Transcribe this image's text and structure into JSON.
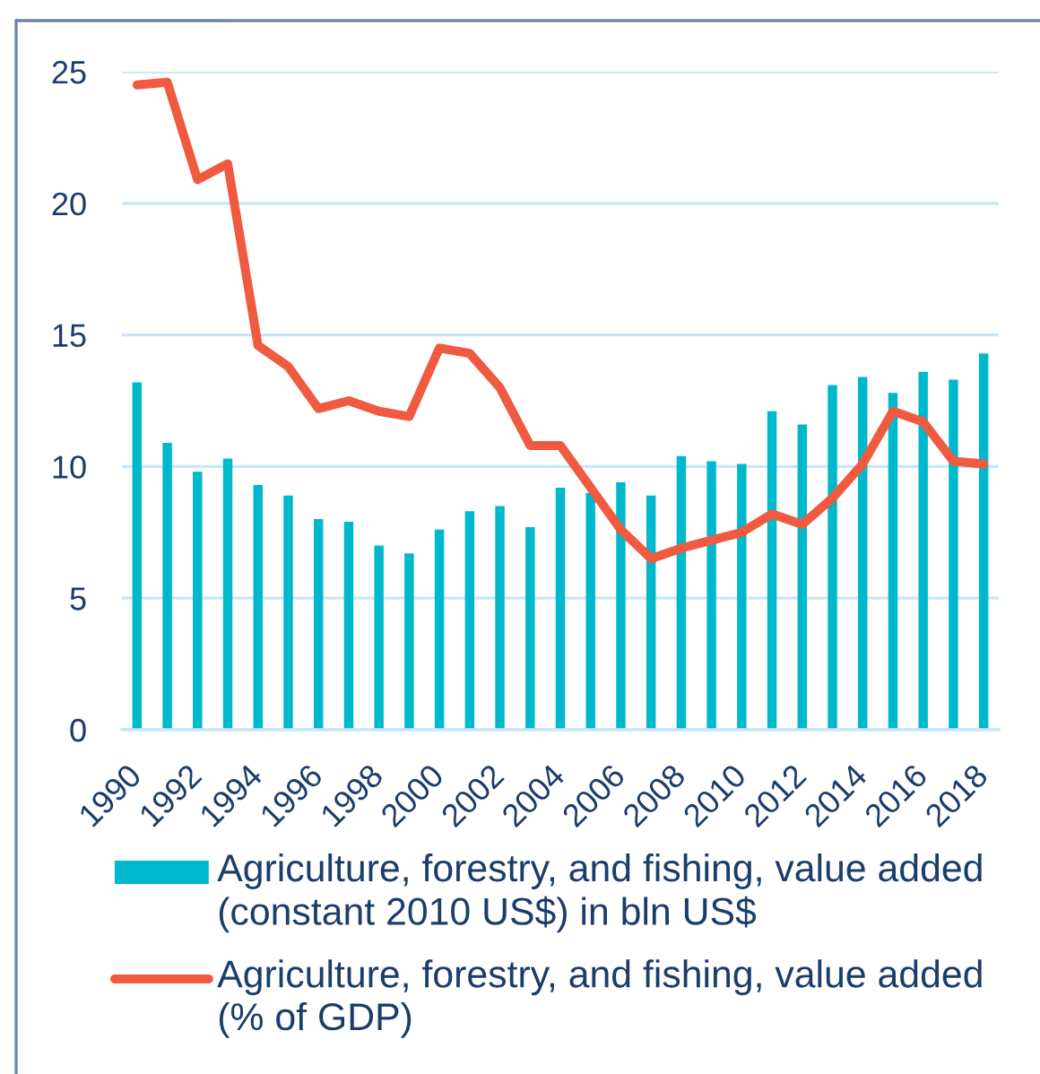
{
  "chart_data": {
    "type": "bar",
    "categories": [
      "1990",
      null,
      "1992",
      null,
      "1994",
      null,
      "1996",
      null,
      "1998",
      null,
      "2000",
      null,
      "2002",
      null,
      "2004",
      null,
      "2006",
      null,
      "2008",
      null,
      "2010",
      null,
      "2012",
      null,
      "2014",
      null,
      "2016",
      null,
      "2018"
    ],
    "series": [
      {
        "name": "Agriculture, forestry, and fishing, value added (constant 2010 US$) in bln US$",
        "color": "#00b8cc",
        "values": [
          13.2,
          10.9,
          9.8,
          10.3,
          9.3,
          8.9,
          8.0,
          7.9,
          7.0,
          6.7,
          7.6,
          8.3,
          8.5,
          7.7,
          9.2,
          9.0,
          9.4,
          8.9,
          10.4,
          10.2,
          10.1,
          12.1,
          11.6,
          13.1,
          13.4,
          12.8,
          13.6,
          13.3,
          14.3
        ]
      },
      {
        "type": "line",
        "name": "Agriculture, forestry, and fishing, value added (% of GDP)",
        "color": "#f05a40",
        "values": [
          24.5,
          24.6,
          20.9,
          21.5,
          14.6,
          13.8,
          12.2,
          12.5,
          12.1,
          11.9,
          14.5,
          14.3,
          13.0,
          10.8,
          10.8,
          9.2,
          7.6,
          6.5,
          6.9,
          7.2,
          7.5,
          8.2,
          7.8,
          8.8,
          10.1,
          12.1,
          11.7,
          10.2,
          10.1
        ]
      }
    ],
    "ylim": [
      0,
      25
    ],
    "yticks": [
      0,
      5,
      10,
      15,
      20,
      25
    ],
    "grid": "y",
    "legend": "bottom"
  }
}
